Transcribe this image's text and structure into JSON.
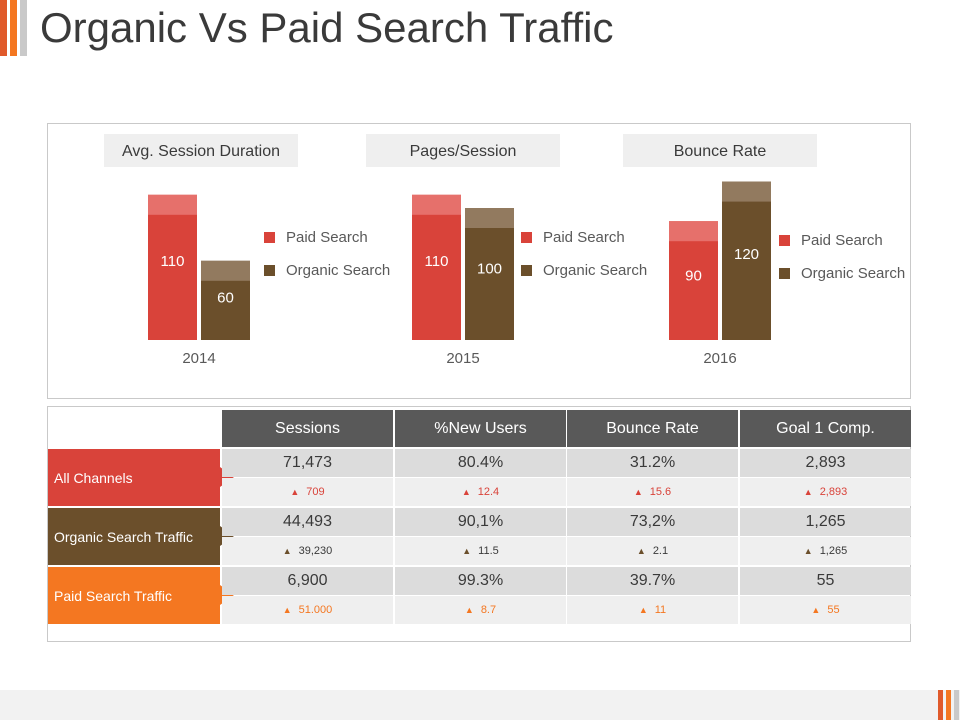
{
  "title": "Organic Vs Paid Search Traffic",
  "colors": {
    "paid": "#d9433a",
    "paid_light": "#e6706b",
    "organic": "#6b4f2b",
    "organic_light": "#927a5f",
    "header_dark": "#595959",
    "orange": "#f47721"
  },
  "legend": {
    "paid": "Paid Search",
    "organic": "Organic Search"
  },
  "chart_data": [
    {
      "type": "bar",
      "title": "Avg. Session Duration",
      "categories": [
        "2014"
      ],
      "series": [
        {
          "name": "Paid Search",
          "values": [
            110
          ]
        },
        {
          "name": "Organic Search",
          "values": [
            60
          ]
        }
      ],
      "ylim": [
        0,
        125
      ],
      "legend": "right"
    },
    {
      "type": "bar",
      "title": "Pages/Session",
      "categories": [
        "2015"
      ],
      "series": [
        {
          "name": "Paid Search",
          "values": [
            110
          ]
        },
        {
          "name": "Organic Search",
          "values": [
            100
          ]
        }
      ],
      "ylim": [
        0,
        125
      ],
      "legend": "right"
    },
    {
      "type": "bar",
      "title": "Bounce Rate",
      "categories": [
        "2016"
      ],
      "series": [
        {
          "name": "Paid Search",
          "values": [
            90
          ]
        },
        {
          "name": "Organic Search",
          "values": [
            120
          ]
        }
      ],
      "ylim": [
        0,
        125
      ],
      "legend": "right"
    }
  ],
  "table": {
    "headers": [
      "Sessions",
      "%New Users",
      "Bounce Rate",
      "Goal 1 Comp."
    ],
    "rows": [
      {
        "label": "All Channels",
        "values": [
          "71,473",
          "80.4%",
          "31.2%",
          "2,893"
        ],
        "changes": [
          "709",
          "12.4",
          "15.6",
          "2,893"
        ]
      },
      {
        "label": "Organic Search Traffic",
        "values": [
          "44,493",
          "90,1%",
          "73,2%",
          "1,265"
        ],
        "changes": [
          "39,230",
          "11.5",
          "2.1",
          "1,265"
        ]
      },
      {
        "label": "Paid Search Traffic",
        "values": [
          "6,900",
          "99.3%",
          "39.7%",
          "55"
        ],
        "changes": [
          "51.000",
          "8.7",
          "11",
          "55"
        ]
      }
    ]
  }
}
